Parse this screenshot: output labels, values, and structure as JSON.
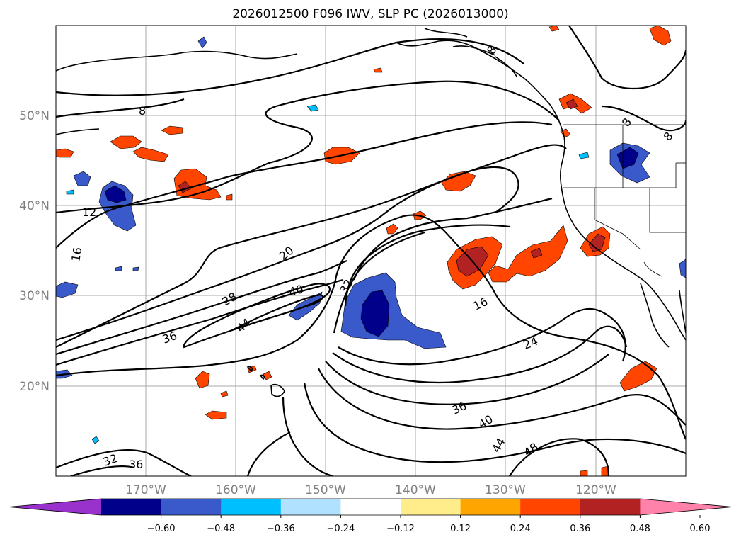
{
  "title": "2026012500 F096 IWV, SLP PC (2026013000)",
  "axes": {
    "lon_labels": [
      "170°W",
      "160°W",
      "150°W",
      "140°W",
      "130°W",
      "120°W"
    ],
    "lat_labels": [
      "50°N",
      "40°N",
      "30°N",
      "20°N"
    ]
  },
  "contour_labels": [
    "8",
    "8",
    "8",
    "8",
    "12",
    "16",
    "20",
    "28",
    "32",
    "36",
    "40",
    "44",
    "16",
    "24",
    "36",
    "40",
    "44",
    "48",
    "32",
    "36"
  ],
  "colorbar": {
    "colors": [
      "#9932cc",
      "#00008b",
      "#3a5acb",
      "#00bfff",
      "#b0e2ff",
      "#ffffff",
      "#ffec8b",
      "#ffa500",
      "#ff4500",
      "#b22222",
      "#ff82ab"
    ],
    "tick_labels": [
      "−0.60",
      "−0.48",
      "−0.36",
      "−0.24",
      "−0.12",
      "0.12",
      "0.24",
      "0.36",
      "0.48",
      "0.60"
    ]
  },
  "palette": {
    "blue_dark": "#00008b",
    "blue_mid": "#3a5acb",
    "blue_light": "#00bfff",
    "red_dark": "#b22222",
    "red_mid": "#ff4500",
    "orange": "#ffa500",
    "yellow": "#ffec8b"
  }
}
